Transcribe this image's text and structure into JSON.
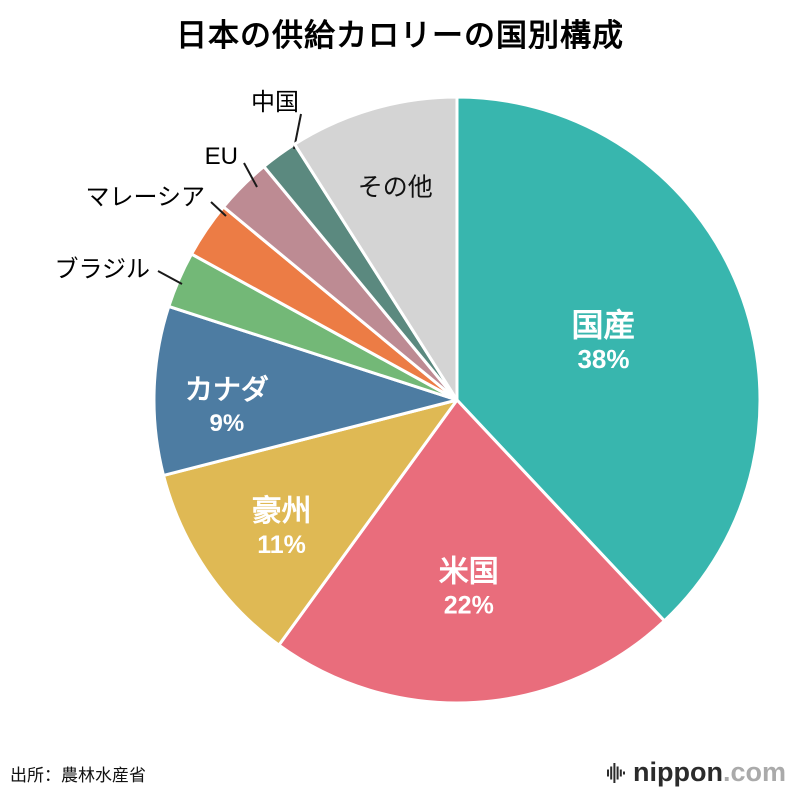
{
  "title": "日本の供給カロリーの国別構成",
  "source": "出所：農林水産省",
  "logo": {
    "brand": "nippon",
    "tld": ".com",
    "icon": "soundwave-bars-icon"
  },
  "chart_data": {
    "type": "pie",
    "title": "日本の供給カロリーの国別構成",
    "unit": "%",
    "start_angle_deg": 0,
    "direction": "clockwise",
    "legend": "none",
    "source": "出所：農林水産省",
    "slices": [
      {
        "label": "国産",
        "value": 38,
        "display_pct": "38%",
        "color": "#38b6ae",
        "label_placement": "inside"
      },
      {
        "label": "米国",
        "value": 22,
        "display_pct": "22%",
        "color": "#e96d7c",
        "label_placement": "inside"
      },
      {
        "label": "豪州",
        "value": 11,
        "display_pct": "11%",
        "color": "#dfb954",
        "label_placement": "inside"
      },
      {
        "label": "カナダ",
        "value": 9,
        "display_pct": "9%",
        "color": "#4d7ca2",
        "label_placement": "inside"
      },
      {
        "label": "ブラジル",
        "value": 3,
        "display_pct": "",
        "color": "#73b877",
        "label_placement": "outside"
      },
      {
        "label": "マレーシア",
        "value": 3,
        "display_pct": "",
        "color": "#ec7c45",
        "label_placement": "outside"
      },
      {
        "label": "EU",
        "value": 3,
        "display_pct": "",
        "color": "#bd8b93",
        "label_placement": "outside"
      },
      {
        "label": "中国",
        "value": 2,
        "display_pct": "",
        "color": "#5b897f",
        "label_placement": "outside"
      },
      {
        "label": "その他",
        "value": 9,
        "display_pct": "",
        "color": "#d4d4d4",
        "label_placement": "inside-dark"
      }
    ]
  }
}
